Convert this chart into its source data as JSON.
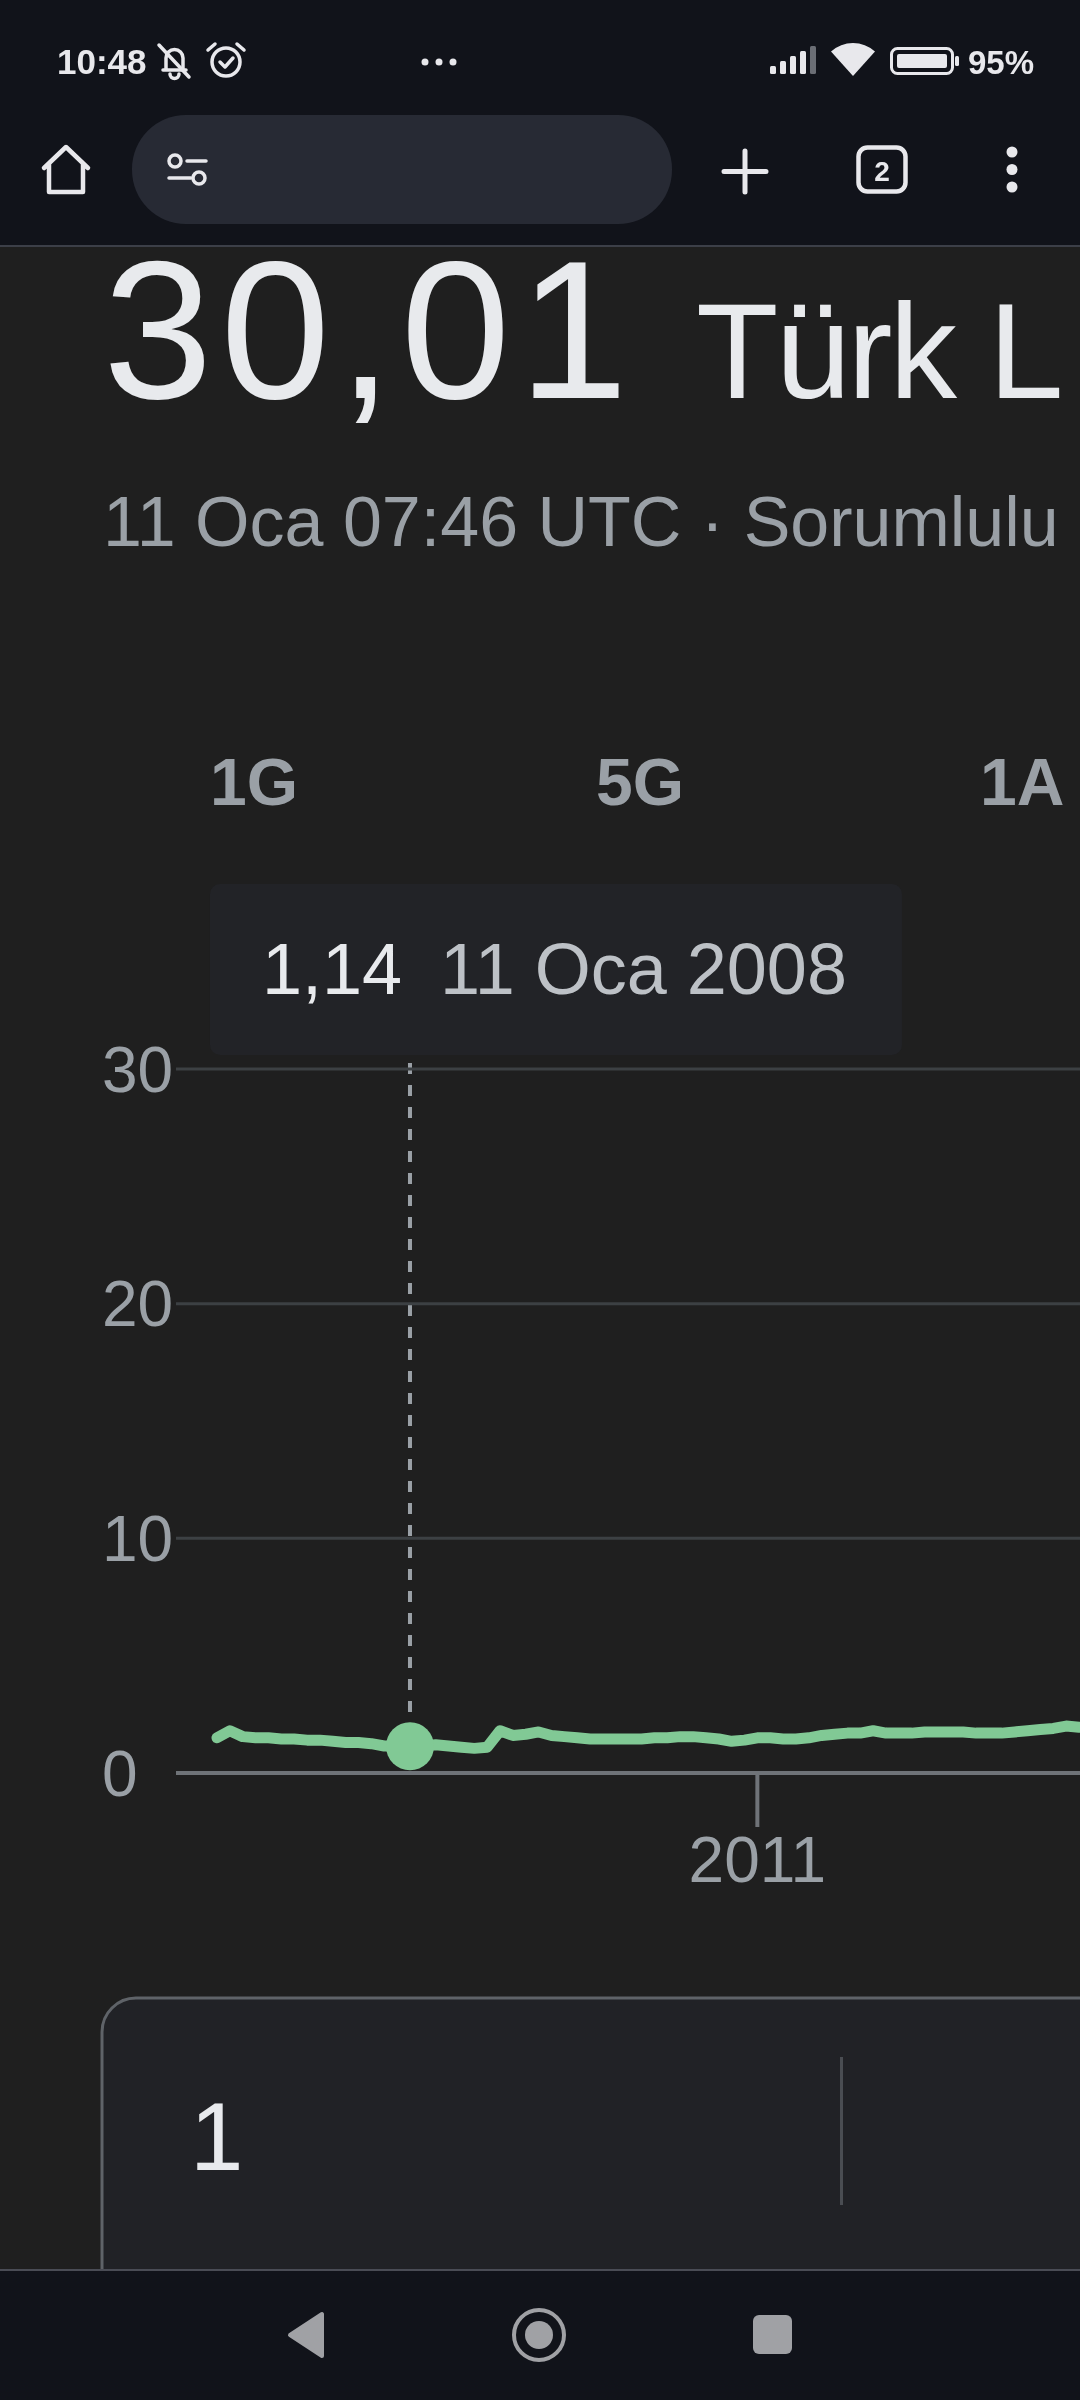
{
  "chart_data": {
    "type": "line",
    "title": "30,01 Türk L",
    "subtitle": "11 Oca 07:46 UTC · Sorumlulu",
    "annotations": [
      "10:48",
      "95%",
      "2",
      "1G",
      "5G",
      "1A",
      "1,14",
      "11 Oca 2008",
      "1"
    ],
    "categories": [
      null,
      null,
      null,
      null,
      null,
      null,
      null,
      null,
      null,
      null,
      null,
      null,
      null,
      null,
      null,
      null,
      null,
      null,
      null,
      null,
      null,
      null,
      null,
      null,
      null,
      null,
      null,
      null,
      null,
      null,
      null,
      null,
      null,
      null,
      null,
      null,
      null,
      null,
      null,
      null,
      null,
      null,
      "2011",
      null,
      null,
      null,
      null,
      null,
      null,
      null,
      null,
      null,
      null,
      null,
      null,
      null,
      null,
      null,
      null,
      null,
      null,
      null,
      null,
      null,
      null,
      null,
      null,
      null
    ],
    "series": [
      {
        "color": "#81c995",
        "values": [
          1.5,
          1.8,
          1.55,
          1.5,
          1.5,
          1.45,
          1.45,
          1.4,
          1.4,
          1.35,
          1.3,
          1.3,
          1.25,
          1.15,
          1.15,
          1.14,
          1.15,
          1.2,
          1.15,
          1.1,
          1.05,
          1.1,
          1.8,
          1.6,
          1.65,
          1.75,
          1.6,
          1.55,
          1.5,
          1.45,
          1.45,
          1.45,
          1.45,
          1.45,
          1.5,
          1.5,
          1.55,
          1.55,
          1.5,
          1.45,
          1.35,
          1.4,
          1.5,
          1.5,
          1.45,
          1.45,
          1.5,
          1.6,
          1.65,
          1.7,
          1.7,
          1.8,
          1.7,
          1.7,
          1.7,
          1.75,
          1.75,
          1.75,
          1.75,
          1.7,
          1.7,
          1.7,
          1.75,
          1.8,
          1.85,
          1.9,
          2.0,
          1.95
        ]
      },
      {
        "type": "scatter",
        "color": "#81c995",
        "marker": "circle",
        "values": [
          null,
          null,
          null,
          null,
          null,
          null,
          null,
          null,
          null,
          null,
          null,
          null,
          null,
          null,
          null,
          1.14,
          null,
          null,
          null,
          null,
          null,
          null,
          null,
          null,
          null,
          null,
          null,
          null,
          null,
          null,
          null,
          null,
          null,
          null,
          null,
          null,
          null,
          null,
          null,
          null,
          null,
          null,
          null,
          null,
          null,
          null,
          null,
          null,
          null,
          null,
          null,
          null,
          null,
          null,
          null,
          null,
          null,
          null,
          null,
          null,
          null,
          null,
          null,
          null,
          null,
          null,
          null,
          null
        ]
      }
    ],
    "ylim": [
      0,
      30
    ],
    "yticks": [
      0,
      10,
      20,
      30
    ],
    "grid": "y"
  }
}
